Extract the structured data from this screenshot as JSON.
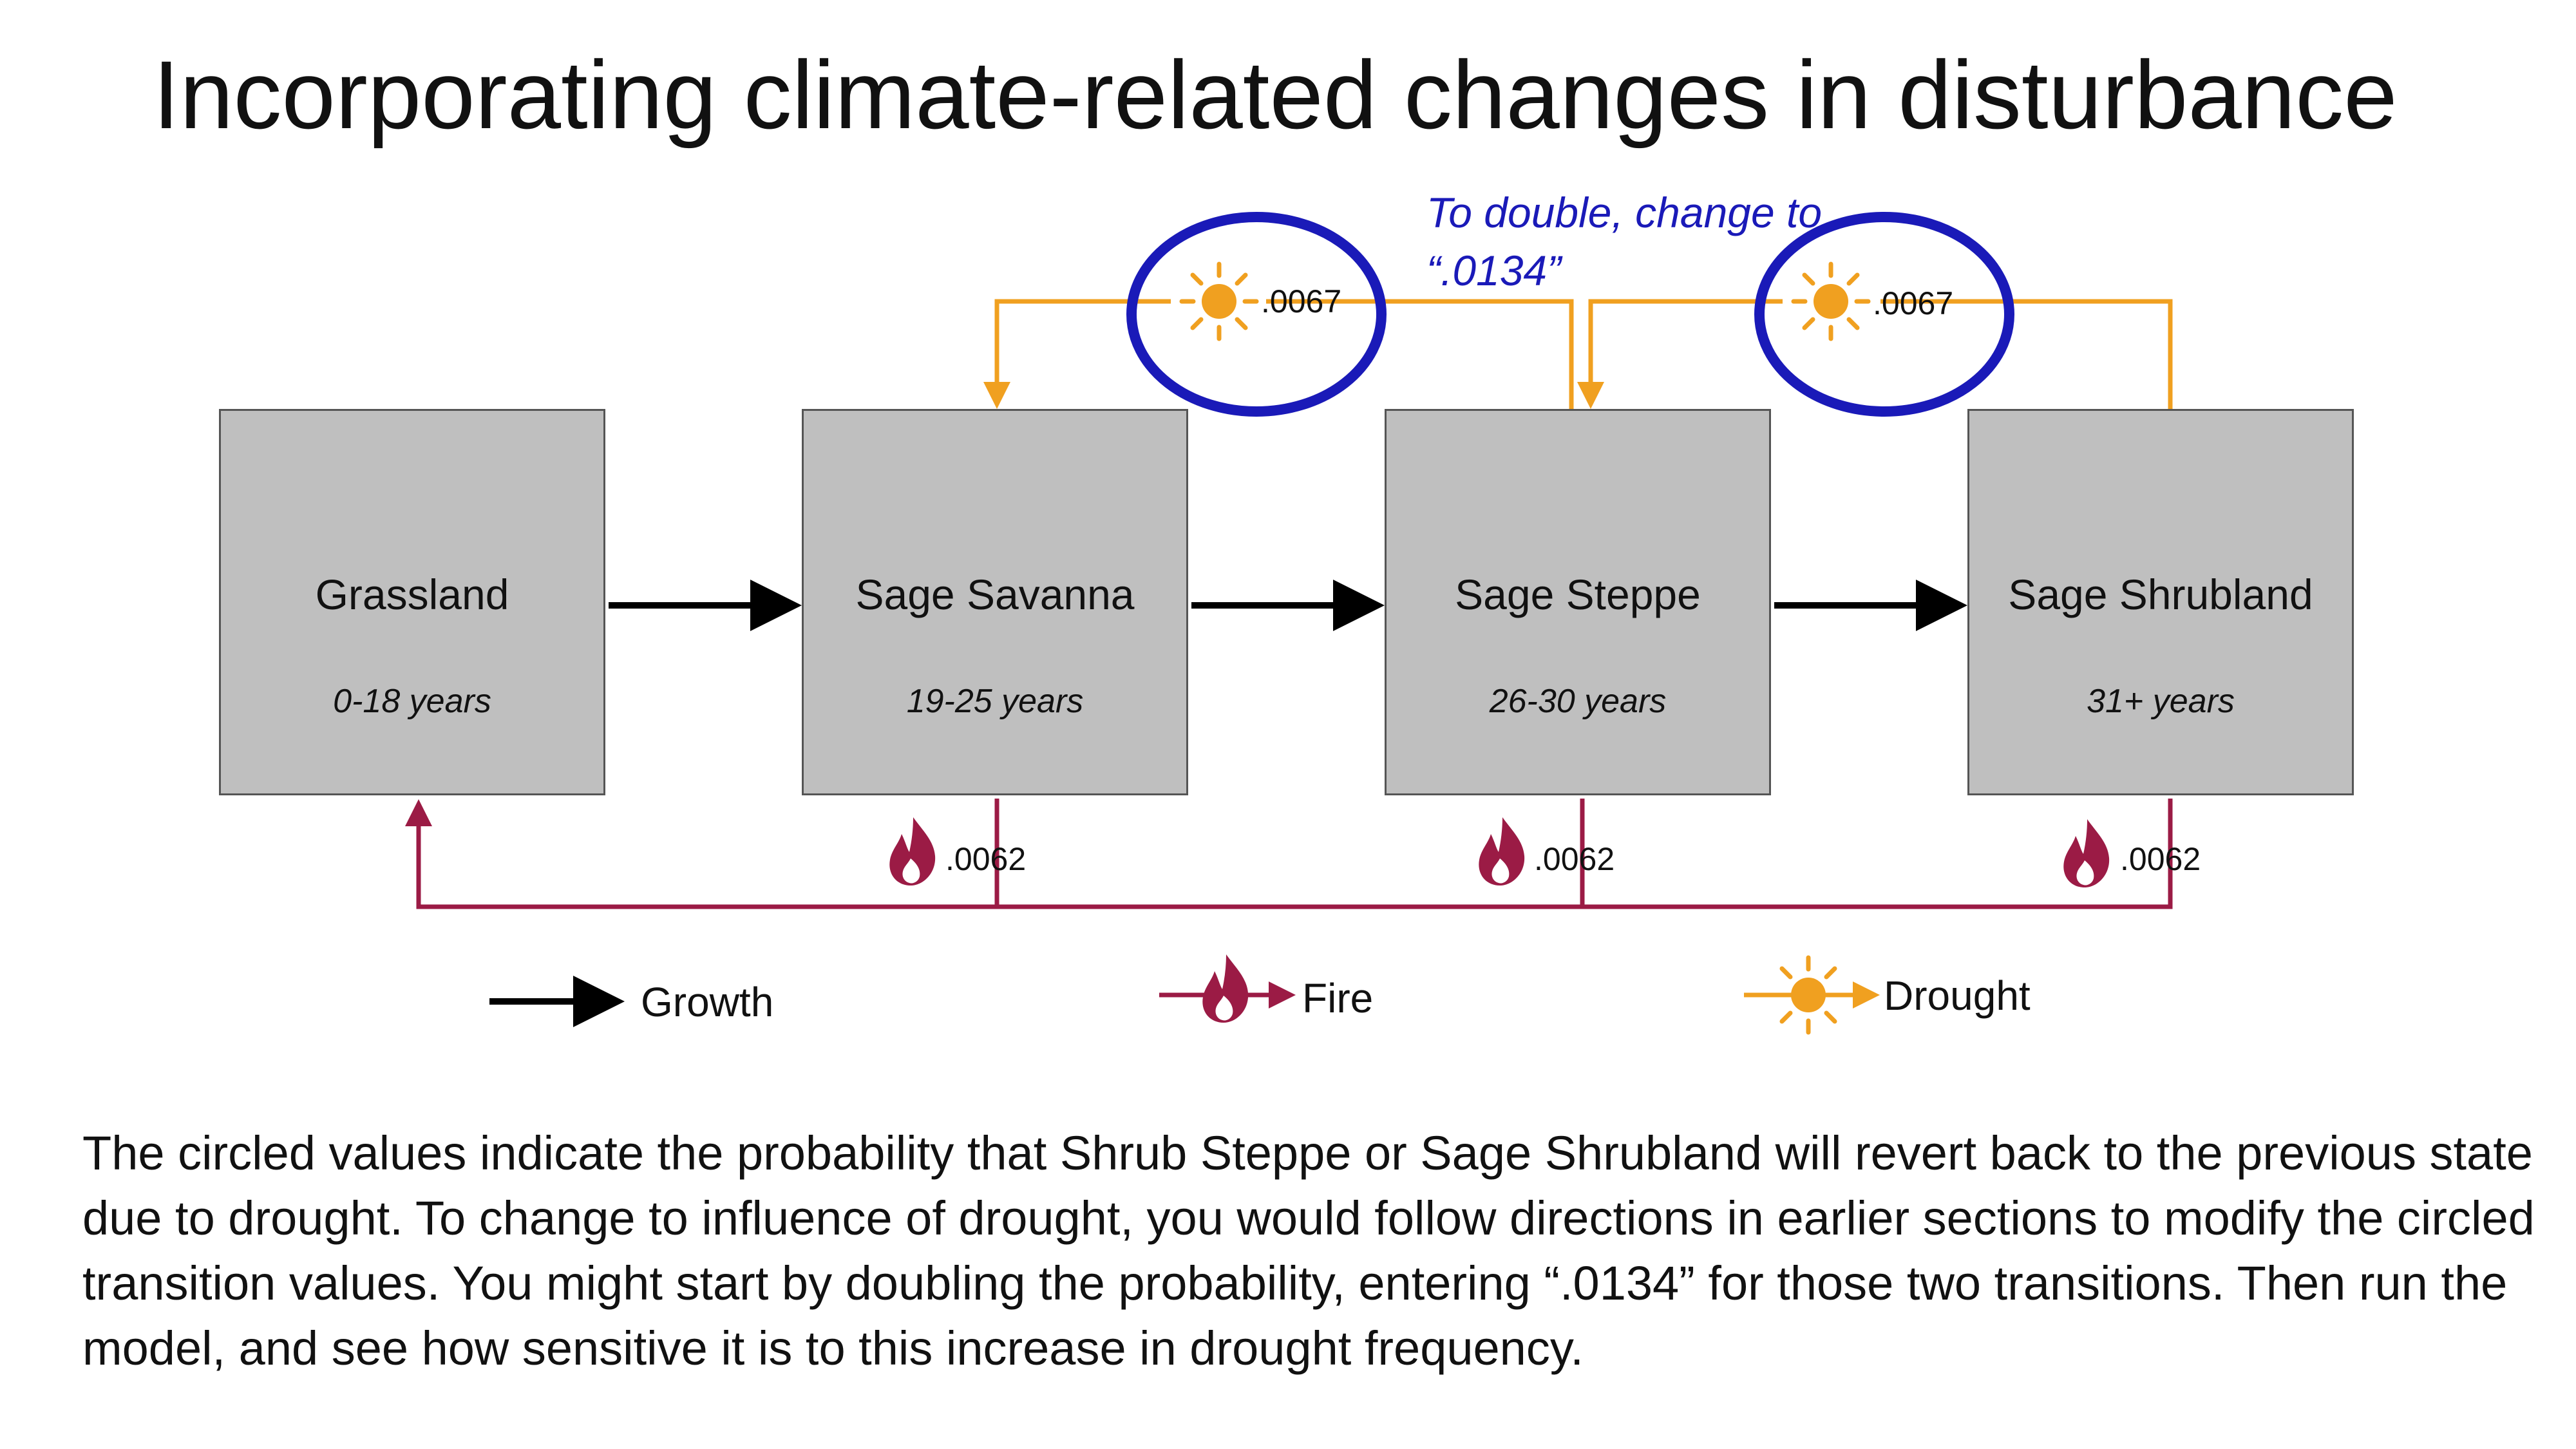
{
  "title": "Incorporating climate-related changes in disturbance",
  "states": [
    {
      "name": "Grassland",
      "age": "0-18 years"
    },
    {
      "name": "Sage Savanna",
      "age": "19-25 years"
    },
    {
      "name": "Sage Steppe",
      "age": "26-30 years"
    },
    {
      "name": "Sage Shrubland",
      "age": "31+ years"
    }
  ],
  "drought_transitions": [
    {
      "from": "Sage Steppe",
      "to": "Sage Savanna",
      "value": ".0067",
      "circled": true
    },
    {
      "from": "Sage Shrubland",
      "to": "Sage Steppe",
      "value": ".0067",
      "circled": true
    }
  ],
  "fire_transitions": [
    {
      "from": "Sage Savanna",
      "to": "Grassland",
      "value": ".0062"
    },
    {
      "from": "Sage Steppe",
      "to": "Grassland",
      "value": ".0062"
    },
    {
      "from": "Sage Shrubland",
      "to": "Grassland",
      "value": ".0062"
    }
  ],
  "note": "To double, change to “.0134”",
  "legend": {
    "growth": "Growth",
    "fire": "Fire",
    "drought": "Drought"
  },
  "colors": {
    "box_fill": "#bfbfbf",
    "growth": "#000000",
    "fire": "#9b1b45",
    "drought": "#f0a020",
    "circle": "#1a1ab8",
    "note": "#1a1ab8"
  },
  "icons": {
    "drought": "sun-icon",
    "fire": "flame-icon"
  },
  "body_text": "The circled values indicate the probability that Shrub Steppe or Sage Shrubland will revert back to the previous state due to drought. To change to influence of drought, you would follow directions in earlier sections to modify the circled transition values. You might start by doubling the probability, entering “.0134” for those two transitions.  Then run the model, and see how sensitive it is to this increase in drought frequency."
}
